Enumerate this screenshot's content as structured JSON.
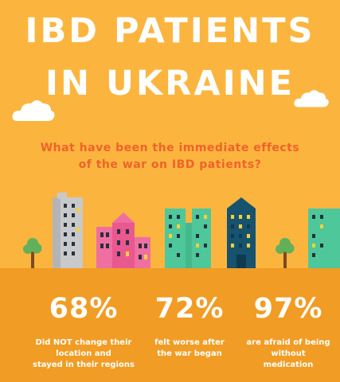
{
  "title": {
    "line1": "IBD PATIENTS",
    "line2": "IN UKRAINE"
  },
  "question": {
    "line1": "What have been the immediate effects",
    "line2": "of the war on IBD patients?"
  },
  "stats": [
    {
      "value": "68%",
      "line1": "Did NOT change their",
      "line2": "location and",
      "line3": "stayed in their regions"
    },
    {
      "value": "72%",
      "line1": "felt worse after",
      "line2": "the war began",
      "line3": ""
    },
    {
      "value": "97%",
      "line1": "are afraid of being",
      "line2": "without",
      "line3": "medication"
    }
  ],
  "colors": {
    "sky": "#fbb53f",
    "ground": "#f19c24",
    "question": "#f0622a",
    "building_gray": "#c8c9cb",
    "building_pink": "#ef6fa0",
    "building_green": "#4ec79a",
    "building_navy": "#17536e",
    "tree_foliage": "#62b05a",
    "window_dark": "#26313d",
    "window_yellow": "#f8cf3a"
  },
  "icons": [
    "cloud-icon",
    "tree-icon",
    "building-icon"
  ]
}
